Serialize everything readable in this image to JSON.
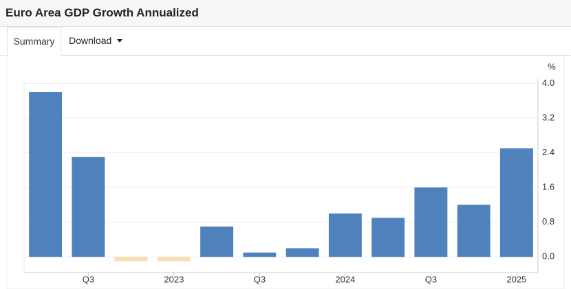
{
  "tabs": [
    "Summary",
    "Download"
  ],
  "chart_data": {
    "type": "bar",
    "title": "Euro Area GDP Growth Annualized",
    "y_unit": "%",
    "categories": [
      null,
      "Q3",
      null,
      "2023",
      null,
      "Q3",
      null,
      "2024",
      null,
      "Q3",
      null,
      "2025"
    ],
    "values": [
      3.8,
      2.3,
      -0.1,
      -0.1,
      0.7,
      0.1,
      0.2,
      1.0,
      0.9,
      1.6,
      1.2,
      2.5
    ],
    "color": "#4f81bd",
    "negative_color": "#f8dfb4",
    "ylim": [
      -0.36,
      4.1
    ],
    "yticks": [
      {
        "value": 0,
        "label": "0.0"
      },
      0.8,
      1.6,
      2.4,
      3.2,
      {
        "value": 4,
        "label": "4.0"
      }
    ],
    "grid": true
  }
}
